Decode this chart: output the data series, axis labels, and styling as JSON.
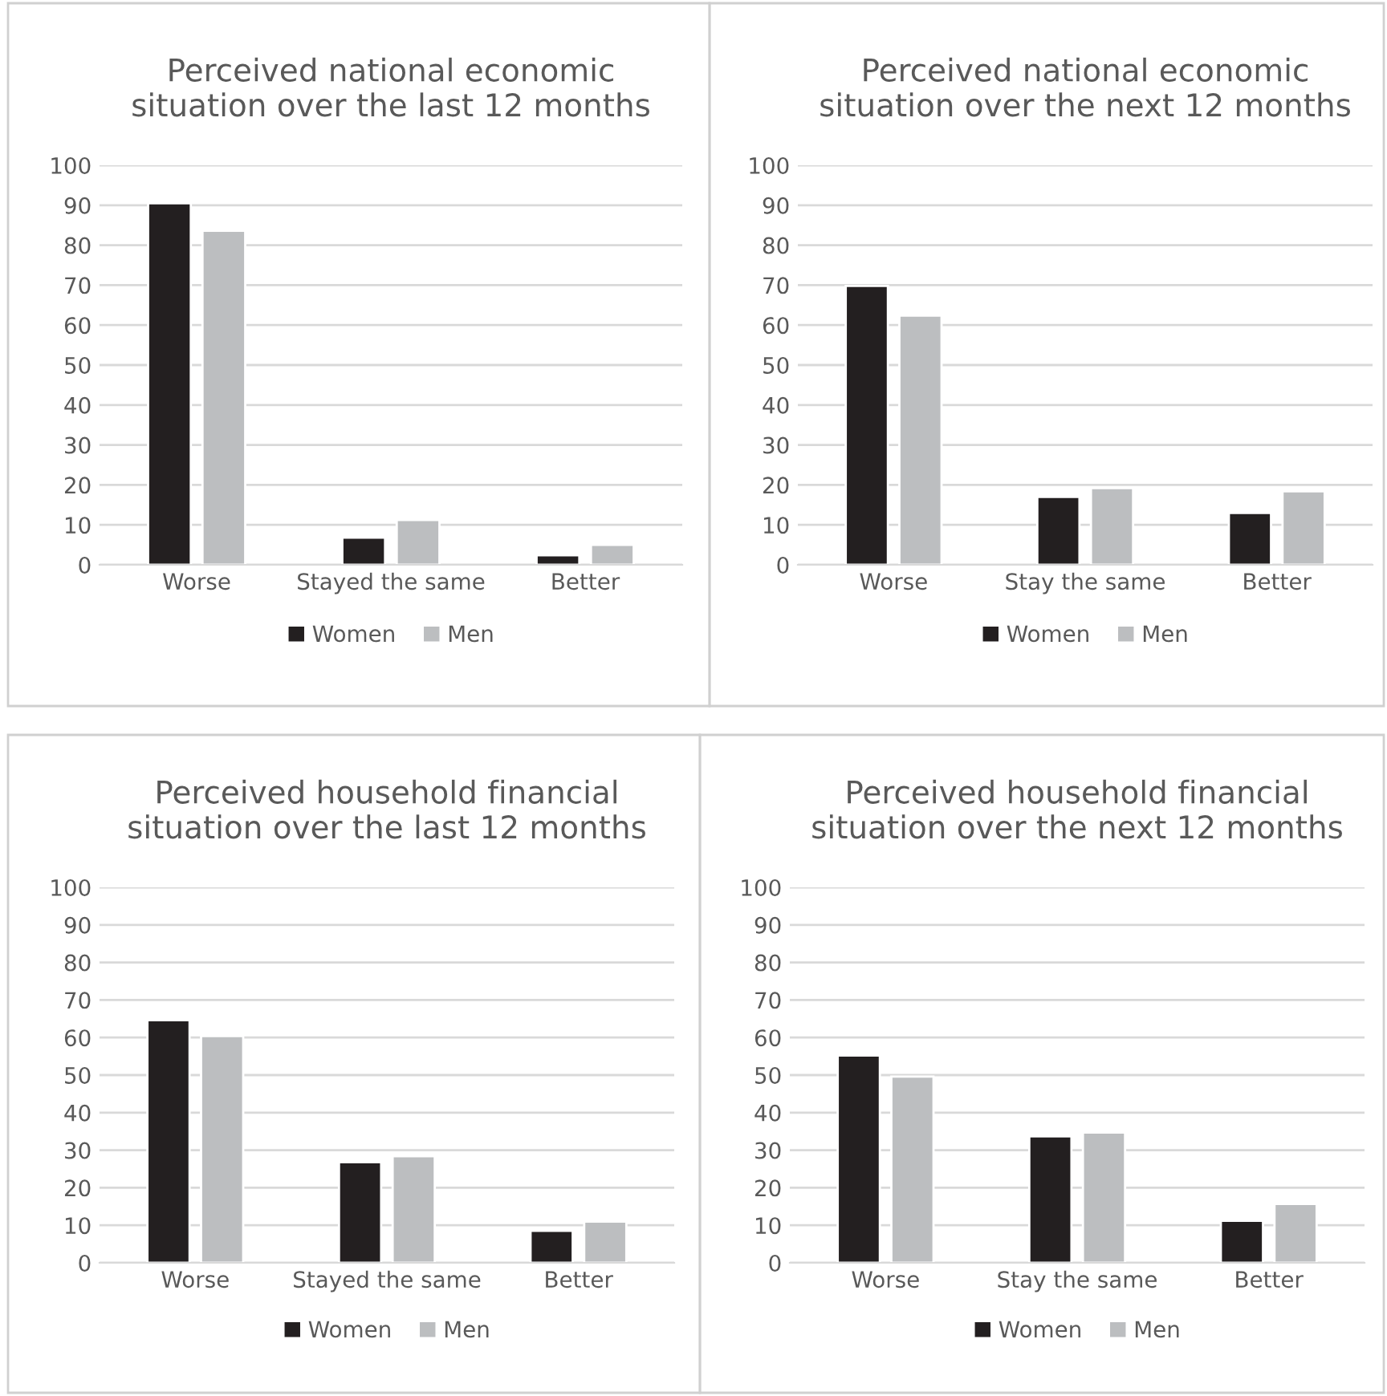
{
  "chart_data": [
    {
      "type": "bar",
      "title": "Perceived national economic\nsituation over the last 12 months",
      "categories": [
        "Worse",
        "Stayed the same",
        "Better"
      ],
      "series": [
        {
          "name": "Women",
          "color": "#231f20",
          "values": [
            90.5,
            6.8,
            2.4
          ]
        },
        {
          "name": "Men",
          "color": "#bcbec0",
          "values": [
            83.6,
            11.2,
            5.0
          ]
        }
      ],
      "ylim": [
        0,
        100
      ],
      "yticks": [
        0,
        10,
        20,
        30,
        40,
        50,
        60,
        70,
        80,
        90,
        100
      ],
      "grid": "y",
      "legend": "bottom"
    },
    {
      "type": "bar",
      "title": "Perceived national economic\nsituation over the next 12 months",
      "categories": [
        "Worse",
        "Stay the same",
        "Better"
      ],
      "series": [
        {
          "name": "Women",
          "color": "#231f20",
          "values": [
            69.8,
            17.0,
            13.0
          ]
        },
        {
          "name": "Men",
          "color": "#bcbec0",
          "values": [
            62.4,
            19.2,
            18.4
          ]
        }
      ],
      "ylim": [
        0,
        100
      ],
      "yticks": [
        0,
        10,
        20,
        30,
        40,
        50,
        60,
        70,
        80,
        90,
        100
      ],
      "grid": "y",
      "legend": "bottom"
    },
    {
      "type": "bar",
      "title": "Perceived household financial\nsituation over the last 12 months",
      "categories": [
        "Worse",
        "Stayed the same",
        "Better"
      ],
      "series": [
        {
          "name": "Women",
          "color": "#231f20",
          "values": [
            64.6,
            26.8,
            8.5
          ]
        },
        {
          "name": "Men",
          "color": "#bcbec0",
          "values": [
            60.4,
            28.4,
            11.0
          ]
        }
      ],
      "ylim": [
        0,
        100
      ],
      "yticks": [
        0,
        10,
        20,
        30,
        40,
        50,
        60,
        70,
        80,
        90,
        100
      ],
      "grid": "y",
      "legend": "bottom"
    },
    {
      "type": "bar",
      "title": "Perceived household financial\nsituation over the next 12 months",
      "categories": [
        "Worse",
        "Stay the same",
        "Better"
      ],
      "series": [
        {
          "name": "Women",
          "color": "#231f20",
          "values": [
            55.2,
            33.7,
            11.2
          ]
        },
        {
          "name": "Men",
          "color": "#bcbec0",
          "values": [
            49.6,
            34.7,
            15.7
          ]
        }
      ],
      "ylim": [
        0,
        100
      ],
      "yticks": [
        0,
        10,
        20,
        30,
        40,
        50,
        60,
        70,
        80,
        90,
        100
      ],
      "grid": "y",
      "legend": "bottom"
    }
  ]
}
